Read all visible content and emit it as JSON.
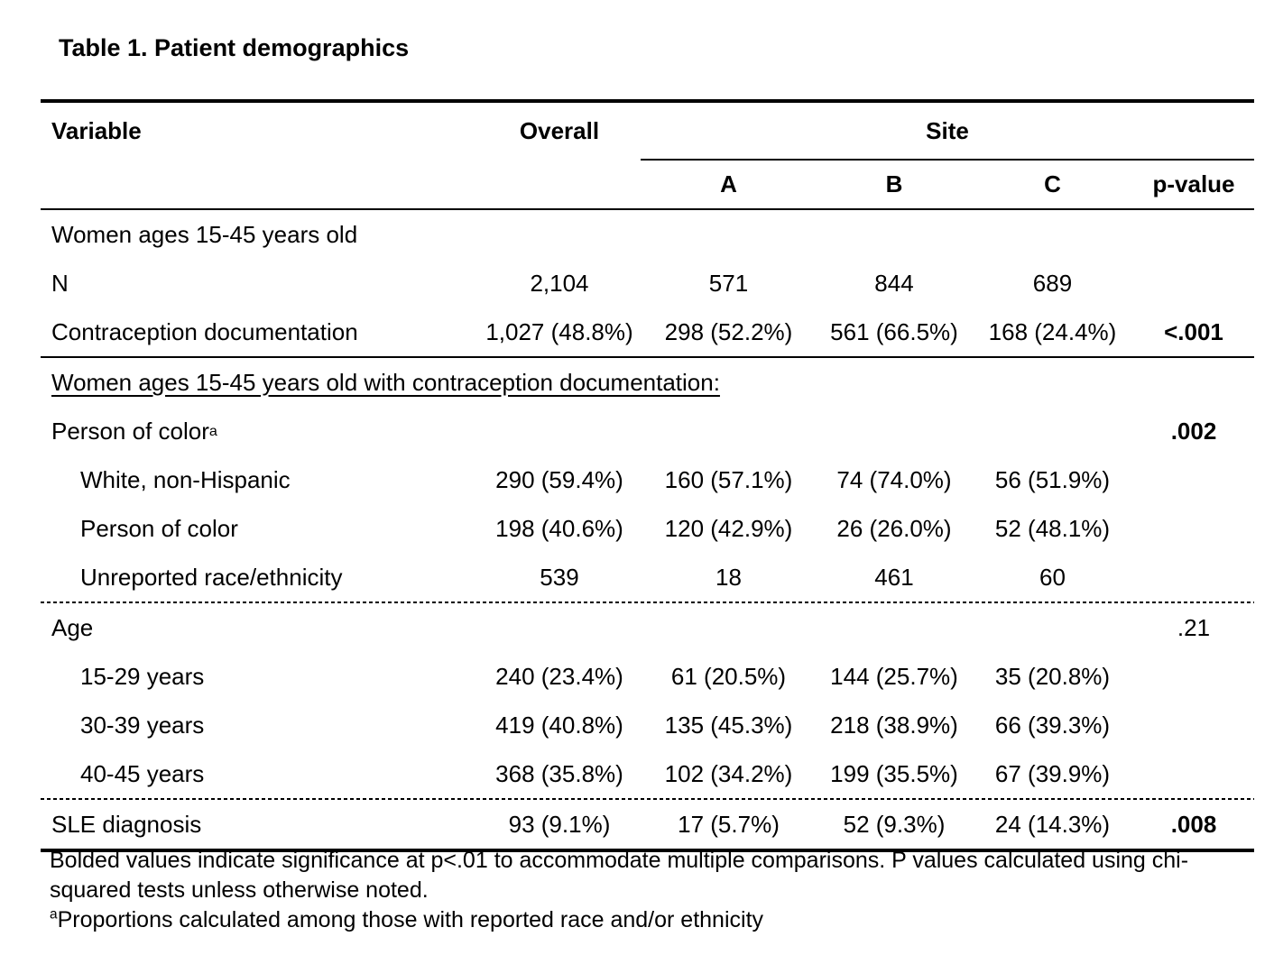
{
  "title": "Table 1. Patient demographics",
  "header": {
    "variable": "Variable",
    "overall": "Overall",
    "site": "Site",
    "site_cols": [
      "A",
      "B",
      "C"
    ],
    "pvalue": "p-value"
  },
  "rows": [
    {
      "label": "Women ages 15-45 years old",
      "sup": "",
      "overall": "",
      "a": "",
      "b": "",
      "c": "",
      "p": ""
    },
    {
      "label": "N",
      "sup": "",
      "overall": "2,104",
      "a": "571",
      "b": "844",
      "c": "689",
      "p": ""
    },
    {
      "label": "Contraception documentation",
      "sup": "",
      "overall": "1,027 (48.8%)",
      "a": "298 (52.2%)",
      "b": "561 (66.5%)",
      "c": "168 (24.4%)",
      "p": "<.001"
    },
    {
      "label": "Women ages 15-45 years old with contraception documentation:",
      "sup": "",
      "overall": "",
      "a": "",
      "b": "",
      "c": "",
      "p": ""
    },
    {
      "label": "Person of color",
      "sup": "a",
      "overall": "",
      "a": "",
      "b": "",
      "c": "",
      "p": ".002"
    },
    {
      "label": "White, non-Hispanic",
      "sup": "",
      "overall": "290 (59.4%)",
      "a": "160 (57.1%)",
      "b": "74 (74.0%)",
      "c": "56 (51.9%)",
      "p": ""
    },
    {
      "label": "Person of color",
      "sup": "",
      "overall": "198 (40.6%)",
      "a": "120 (42.9%)",
      "b": "26 (26.0%)",
      "c": "52 (48.1%)",
      "p": ""
    },
    {
      "label": "Unreported race/ethnicity",
      "sup": "",
      "overall": "539",
      "a": "18",
      "b": "461",
      "c": "60",
      "p": ""
    },
    {
      "label": "Age",
      "sup": "",
      "overall": "",
      "a": "",
      "b": "",
      "c": "",
      "p": ".21"
    },
    {
      "label": "15-29 years",
      "sup": "",
      "overall": "240 (23.4%)",
      "a": "61 (20.5%)",
      "b": "144 (25.7%)",
      "c": "35 (20.8%)",
      "p": ""
    },
    {
      "label": "30-39 years",
      "sup": "",
      "overall": "419 (40.8%)",
      "a": "135 (45.3%)",
      "b": "218 (38.9%)",
      "c": "66 (39.3%)",
      "p": ""
    },
    {
      "label": "40-45 years",
      "sup": "",
      "overall": "368 (35.8%)",
      "a": "102 (34.2%)",
      "b": "199 (35.5%)",
      "c": "67 (39.9%)",
      "p": ""
    },
    {
      "label": "SLE diagnosis",
      "sup": "",
      "overall": "93 (9.1%)",
      "a": "17 (5.7%)",
      "b": "52 (9.3%)",
      "c": "24 (14.3%)",
      "p": ".008"
    }
  ],
  "footnotes": [
    {
      "sup": "",
      "text": "Bolded values indicate significance at p<.01 to accommodate multiple comparisons. P values calculated using chi-squared tests unless otherwise noted."
    },
    {
      "sup": "a",
      "text": "Proportions calculated among those with reported race and/or ethnicity"
    }
  ]
}
